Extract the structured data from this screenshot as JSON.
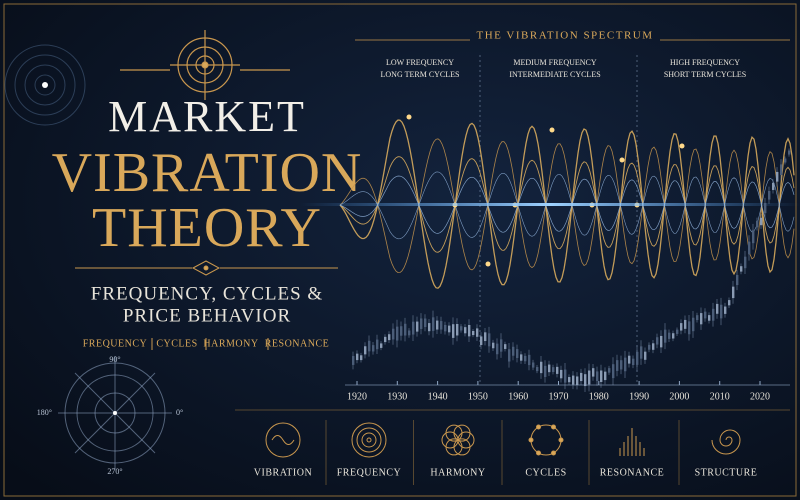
{
  "title": {
    "line1": "MARKET",
    "line2": "VIBRATION",
    "line3": "THEORY"
  },
  "subtitle": [
    "FREQUENCY, CYCLES &",
    "PRICE BEHAVIOR"
  ],
  "keywords": [
    "FREQUENCY",
    "CYCLES",
    "HARMONY",
    "RESONANCE"
  ],
  "dial": {
    "top": "90°",
    "left": "180°",
    "right": "0°",
    "bottom": "270°"
  },
  "spectrum": {
    "title": "THE VIBRATION SPECTRUM",
    "bands": [
      {
        "name": "LOW FREQUENCY",
        "desc": "LONG TERM CYCLES"
      },
      {
        "name": "MEDIUM FREQUENCY",
        "desc": "INTERMEDIATE CYCLES"
      },
      {
        "name": "HIGH FREQUENCY",
        "desc": "SHORT TERM CYCLES"
      }
    ]
  },
  "timeline": [
    1920,
    1930,
    1940,
    1950,
    1960,
    1970,
    1980,
    1990,
    2000,
    2010,
    2020
  ],
  "icons": [
    "VIBRATION",
    "FREQUENCY",
    "HARMONY",
    "CYCLES",
    "RESONANCE",
    "STRUCTURE"
  ]
}
